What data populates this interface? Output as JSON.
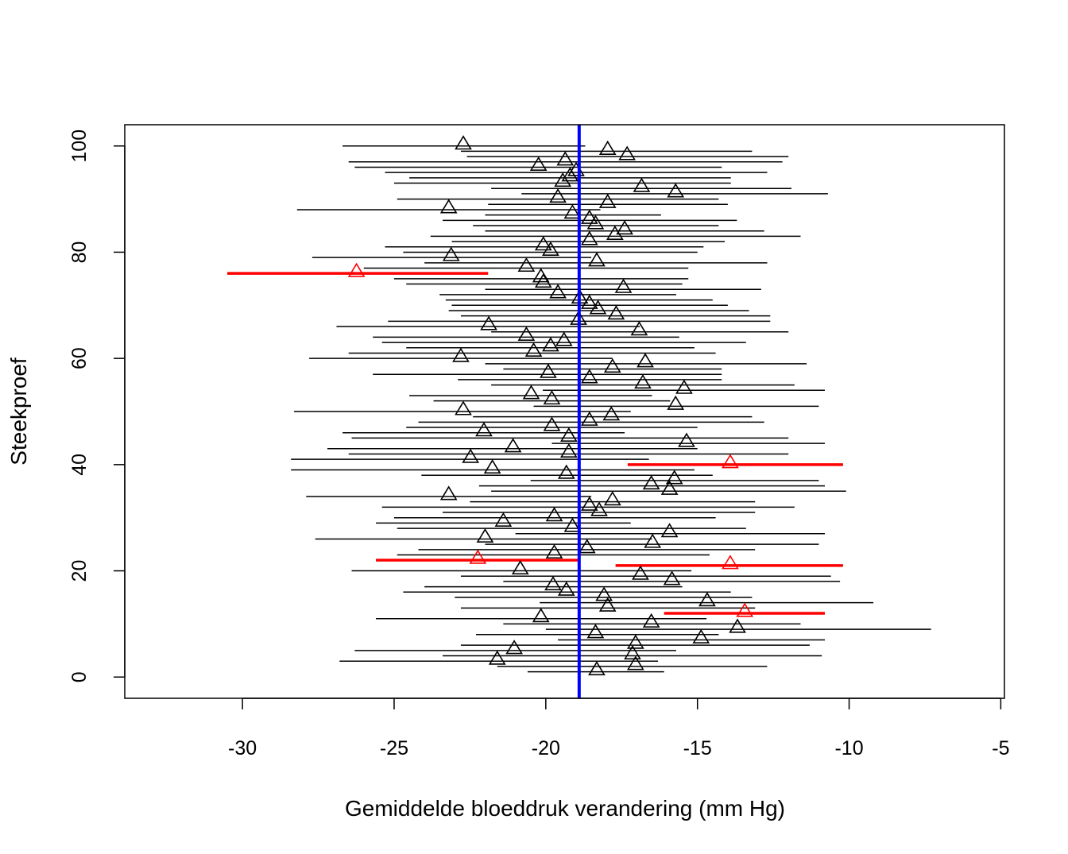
{
  "chart_data": {
    "type": "scatter",
    "title": "",
    "xlabel": "Gemiddelde bloeddruk verandering (mm Hg)",
    "ylabel": "Steekproef",
    "xlim": [
      -33.88,
      -4.88
    ],
    "ylim": [
      -4,
      104
    ],
    "xticks": [
      -30,
      -25,
      -20,
      -15,
      -10,
      -5
    ],
    "yticks": [
      0,
      20,
      40,
      60,
      80,
      100
    ],
    "grid": false,
    "legend": "none",
    "reference_line": {
      "x": -18.9,
      "color": "#0000ff"
    },
    "colors": {
      "covers": "#000000",
      "misses": "#ff0000"
    },
    "intervals": [
      {
        "sample": 1,
        "mean": -18.32,
        "lower": -20.6,
        "upper": -16.1,
        "covers_reference": true
      },
      {
        "sample": 2,
        "mean": -17.04,
        "lower": -21.6,
        "upper": -12.7,
        "covers_reference": true
      },
      {
        "sample": 3,
        "mean": -21.6,
        "lower": -26.8,
        "upper": -16.3,
        "covers_reference": true
      },
      {
        "sample": 4,
        "mean": -17.14,
        "lower": -23.4,
        "upper": -10.9,
        "covers_reference": true
      },
      {
        "sample": 5,
        "mean": -21.04,
        "lower": -26.3,
        "upper": -15.7,
        "covers_reference": true
      },
      {
        "sample": 6,
        "mean": -17.04,
        "lower": -22.8,
        "upper": -11.3,
        "covers_reference": true
      },
      {
        "sample": 7,
        "mean": -14.88,
        "lower": -19.6,
        "upper": -10.8,
        "covers_reference": true
      },
      {
        "sample": 8,
        "mean": -18.36,
        "lower": -22.3,
        "upper": -14.3,
        "covers_reference": true
      },
      {
        "sample": 9,
        "mean": -13.68,
        "lower": -20.0,
        "upper": -7.3,
        "covers_reference": true
      },
      {
        "sample": 10,
        "mean": -16.52,
        "lower": -21.4,
        "upper": -11.6,
        "covers_reference": true
      },
      {
        "sample": 11,
        "mean": -20.16,
        "lower": -25.6,
        "upper": -14.7,
        "covers_reference": true
      },
      {
        "sample": 12,
        "mean": -13.44,
        "lower": -16.1,
        "upper": -10.8,
        "covers_reference": false
      },
      {
        "sample": 13,
        "mean": -17.96,
        "lower": -22.8,
        "upper": -13.1,
        "covers_reference": true
      },
      {
        "sample": 14,
        "mean": -14.68,
        "lower": -20.2,
        "upper": -9.2,
        "covers_reference": true
      },
      {
        "sample": 15,
        "mean": -18.08,
        "lower": -23.0,
        "upper": -13.2,
        "covers_reference": true
      },
      {
        "sample": 16,
        "mean": -19.32,
        "lower": -24.7,
        "upper": -13.9,
        "covers_reference": true
      },
      {
        "sample": 17,
        "mean": -19.76,
        "lower": -24.0,
        "upper": -15.5,
        "covers_reference": true
      },
      {
        "sample": 18,
        "mean": -15.84,
        "lower": -21.4,
        "upper": -10.3,
        "covers_reference": true
      },
      {
        "sample": 19,
        "mean": -16.88,
        "lower": -22.8,
        "upper": -10.6,
        "covers_reference": true
      },
      {
        "sample": 20,
        "mean": -20.84,
        "lower": -26.4,
        "upper": -15.2,
        "covers_reference": true
      },
      {
        "sample": 21,
        "mean": -13.92,
        "lower": -17.7,
        "upper": -10.2,
        "covers_reference": false
      },
      {
        "sample": 22,
        "mean": -22.24,
        "lower": -25.6,
        "upper": -18.9,
        "covers_reference": false
      },
      {
        "sample": 23,
        "mean": -19.72,
        "lower": -24.9,
        "upper": -14.6,
        "covers_reference": true
      },
      {
        "sample": 24,
        "mean": -18.64,
        "lower": -24.2,
        "upper": -13.1,
        "covers_reference": true
      },
      {
        "sample": 25,
        "mean": -16.48,
        "lower": -22.0,
        "upper": -11.0,
        "covers_reference": true
      },
      {
        "sample": 26,
        "mean": -22.0,
        "lower": -27.6,
        "upper": -16.5,
        "covers_reference": true
      },
      {
        "sample": 27,
        "mean": -15.92,
        "lower": -21.0,
        "upper": -10.8,
        "covers_reference": true
      },
      {
        "sample": 28,
        "mean": -19.12,
        "lower": -24.9,
        "upper": -13.4,
        "covers_reference": true
      },
      {
        "sample": 29,
        "mean": -21.4,
        "lower": -25.6,
        "upper": -17.2,
        "covers_reference": true
      },
      {
        "sample": 30,
        "mean": -19.72,
        "lower": -25.0,
        "upper": -14.4,
        "covers_reference": true
      },
      {
        "sample": 31,
        "mean": -18.24,
        "lower": -23.4,
        "upper": -13.1,
        "covers_reference": true
      },
      {
        "sample": 32,
        "mean": -18.56,
        "lower": -25.4,
        "upper": -11.8,
        "covers_reference": true
      },
      {
        "sample": 33,
        "mean": -17.8,
        "lower": -22.5,
        "upper": -13.1,
        "covers_reference": true
      },
      {
        "sample": 34,
        "mean": -23.2,
        "lower": -27.9,
        "upper": -18.5,
        "covers_reference": true
      },
      {
        "sample": 35,
        "mean": -15.92,
        "lower": -21.8,
        "upper": -10.1,
        "covers_reference": true
      },
      {
        "sample": 36,
        "mean": -16.52,
        "lower": -22.2,
        "upper": -10.8,
        "covers_reference": true
      },
      {
        "sample": 37,
        "mean": -15.76,
        "lower": -20.5,
        "upper": -11.0,
        "covers_reference": true
      },
      {
        "sample": 38,
        "mean": -19.32,
        "lower": -24.1,
        "upper": -14.5,
        "covers_reference": true
      },
      {
        "sample": 39,
        "mean": -21.76,
        "lower": -28.4,
        "upper": -15.1,
        "covers_reference": true
      },
      {
        "sample": 40,
        "mean": -13.92,
        "lower": -17.3,
        "upper": -10.2,
        "covers_reference": false
      },
      {
        "sample": 41,
        "mean": -22.48,
        "lower": -28.4,
        "upper": -16.6,
        "covers_reference": true
      },
      {
        "sample": 42,
        "mean": -19.24,
        "lower": -26.5,
        "upper": -12.0,
        "covers_reference": true
      },
      {
        "sample": 43,
        "mean": -21.08,
        "lower": -27.2,
        "upper": -15.0,
        "covers_reference": true
      },
      {
        "sample": 44,
        "mean": -15.36,
        "lower": -19.8,
        "upper": -10.8,
        "covers_reference": true
      },
      {
        "sample": 45,
        "mean": -19.24,
        "lower": -26.4,
        "upper": -12.0,
        "covers_reference": true
      },
      {
        "sample": 46,
        "mean": -22.04,
        "lower": -26.7,
        "upper": -17.4,
        "covers_reference": true
      },
      {
        "sample": 47,
        "mean": -19.8,
        "lower": -24.6,
        "upper": -15.0,
        "covers_reference": true
      },
      {
        "sample": 48,
        "mean": -18.56,
        "lower": -24.2,
        "upper": -12.8,
        "covers_reference": true
      },
      {
        "sample": 49,
        "mean": -17.84,
        "lower": -22.4,
        "upper": -13.2,
        "covers_reference": true
      },
      {
        "sample": 50,
        "mean": -22.72,
        "lower": -28.3,
        "upper": -17.2,
        "covers_reference": true
      },
      {
        "sample": 51,
        "mean": -15.72,
        "lower": -20.4,
        "upper": -11.0,
        "covers_reference": true
      },
      {
        "sample": 52,
        "mean": -19.8,
        "lower": -23.7,
        "upper": -15.9,
        "covers_reference": true
      },
      {
        "sample": 53,
        "mean": -20.48,
        "lower": -24.5,
        "upper": -16.5,
        "covers_reference": true
      },
      {
        "sample": 54,
        "mean": -15.44,
        "lower": -20.1,
        "upper": -10.8,
        "covers_reference": true
      },
      {
        "sample": 55,
        "mean": -16.8,
        "lower": -21.8,
        "upper": -11.8,
        "covers_reference": true
      },
      {
        "sample": 56,
        "mean": -18.56,
        "lower": -22.9,
        "upper": -14.2,
        "covers_reference": true
      },
      {
        "sample": 57,
        "mean": -19.92,
        "lower": -25.7,
        "upper": -14.2,
        "covers_reference": true
      },
      {
        "sample": 58,
        "mean": -17.8,
        "lower": -21.4,
        "upper": -14.2,
        "covers_reference": true
      },
      {
        "sample": 59,
        "mean": -16.72,
        "lower": -22.0,
        "upper": -11.4,
        "covers_reference": true
      },
      {
        "sample": 60,
        "mean": -22.8,
        "lower": -27.8,
        "upper": -17.8,
        "covers_reference": true
      },
      {
        "sample": 61,
        "mean": -20.4,
        "lower": -26.5,
        "upper": -14.4,
        "covers_reference": true
      },
      {
        "sample": 62,
        "mean": -19.84,
        "lower": -24.6,
        "upper": -15.1,
        "covers_reference": true
      },
      {
        "sample": 63,
        "mean": -19.4,
        "lower": -25.4,
        "upper": -13.4,
        "covers_reference": true
      },
      {
        "sample": 64,
        "mean": -20.64,
        "lower": -25.7,
        "upper": -15.6,
        "covers_reference": true
      },
      {
        "sample": 65,
        "mean": -16.92,
        "lower": -21.8,
        "upper": -12.0,
        "covers_reference": true
      },
      {
        "sample": 66,
        "mean": -21.88,
        "lower": -26.9,
        "upper": -16.9,
        "covers_reference": true
      },
      {
        "sample": 67,
        "mean": -18.92,
        "lower": -25.2,
        "upper": -12.6,
        "covers_reference": true
      },
      {
        "sample": 68,
        "mean": -17.68,
        "lower": -22.8,
        "upper": -12.6,
        "covers_reference": true
      },
      {
        "sample": 69,
        "mean": -18.28,
        "lower": -23.2,
        "upper": -13.3,
        "covers_reference": true
      },
      {
        "sample": 70,
        "mean": -18.56,
        "lower": -23.1,
        "upper": -14.0,
        "covers_reference": true
      },
      {
        "sample": 71,
        "mean": -18.88,
        "lower": -23.3,
        "upper": -14.5,
        "covers_reference": true
      },
      {
        "sample": 72,
        "mean": -19.6,
        "lower": -23.5,
        "upper": -15.7,
        "covers_reference": true
      },
      {
        "sample": 73,
        "mean": -17.44,
        "lower": -22.0,
        "upper": -12.9,
        "covers_reference": true
      },
      {
        "sample": 74,
        "mean": -20.08,
        "lower": -24.6,
        "upper": -15.5,
        "covers_reference": true
      },
      {
        "sample": 75,
        "mean": -20.16,
        "lower": -25.0,
        "upper": -15.3,
        "covers_reference": true
      },
      {
        "sample": 76,
        "mean": -26.24,
        "lower": -30.5,
        "upper": -21.9,
        "covers_reference": false
      },
      {
        "sample": 77,
        "mean": -20.64,
        "lower": -26.0,
        "upper": -15.3,
        "covers_reference": true
      },
      {
        "sample": 78,
        "mean": -18.32,
        "lower": -24.0,
        "upper": -12.7,
        "covers_reference": true
      },
      {
        "sample": 79,
        "mean": -23.12,
        "lower": -27.7,
        "upper": -18.5,
        "covers_reference": true
      },
      {
        "sample": 80,
        "mean": -19.84,
        "lower": -24.7,
        "upper": -15.0,
        "covers_reference": true
      },
      {
        "sample": 81,
        "mean": -20.08,
        "lower": -25.3,
        "upper": -14.8,
        "covers_reference": true
      },
      {
        "sample": 82,
        "mean": -18.56,
        "lower": -23.1,
        "upper": -14.1,
        "covers_reference": true
      },
      {
        "sample": 83,
        "mean": -17.72,
        "lower": -23.8,
        "upper": -11.6,
        "covers_reference": true
      },
      {
        "sample": 84,
        "mean": -17.4,
        "lower": -22.0,
        "upper": -12.8,
        "covers_reference": true
      },
      {
        "sample": 85,
        "mean": -18.36,
        "lower": -22.4,
        "upper": -14.3,
        "covers_reference": true
      },
      {
        "sample": 86,
        "mean": -18.56,
        "lower": -23.4,
        "upper": -13.7,
        "covers_reference": true
      },
      {
        "sample": 87,
        "mean": -19.12,
        "lower": -22.0,
        "upper": -16.2,
        "covers_reference": true
      },
      {
        "sample": 88,
        "mean": -23.2,
        "lower": -28.2,
        "upper": -18.2,
        "covers_reference": true
      },
      {
        "sample": 89,
        "mean": -17.96,
        "lower": -21.9,
        "upper": -14.0,
        "covers_reference": true
      },
      {
        "sample": 90,
        "mean": -19.6,
        "lower": -24.9,
        "upper": -14.3,
        "covers_reference": true
      },
      {
        "sample": 91,
        "mean": -15.72,
        "lower": -20.8,
        "upper": -10.7,
        "covers_reference": true
      },
      {
        "sample": 92,
        "mean": -16.84,
        "lower": -21.8,
        "upper": -11.9,
        "covers_reference": true
      },
      {
        "sample": 93,
        "mean": -19.44,
        "lower": -25.0,
        "upper": -13.9,
        "covers_reference": true
      },
      {
        "sample": 94,
        "mean": -19.2,
        "lower": -24.5,
        "upper": -13.9,
        "covers_reference": true
      },
      {
        "sample": 95,
        "mean": -19.0,
        "lower": -25.3,
        "upper": -12.7,
        "covers_reference": true
      },
      {
        "sample": 96,
        "mean": -20.24,
        "lower": -26.3,
        "upper": -14.2,
        "covers_reference": true
      },
      {
        "sample": 97,
        "mean": -19.36,
        "lower": -26.5,
        "upper": -12.2,
        "covers_reference": true
      },
      {
        "sample": 98,
        "mean": -17.32,
        "lower": -22.6,
        "upper": -12.0,
        "covers_reference": true
      },
      {
        "sample": 99,
        "mean": -17.96,
        "lower": -22.8,
        "upper": -13.2,
        "covers_reference": true
      },
      {
        "sample": 100,
        "mean": -22.72,
        "lower": -26.7,
        "upper": -18.7,
        "covers_reference": true
      }
    ]
  }
}
